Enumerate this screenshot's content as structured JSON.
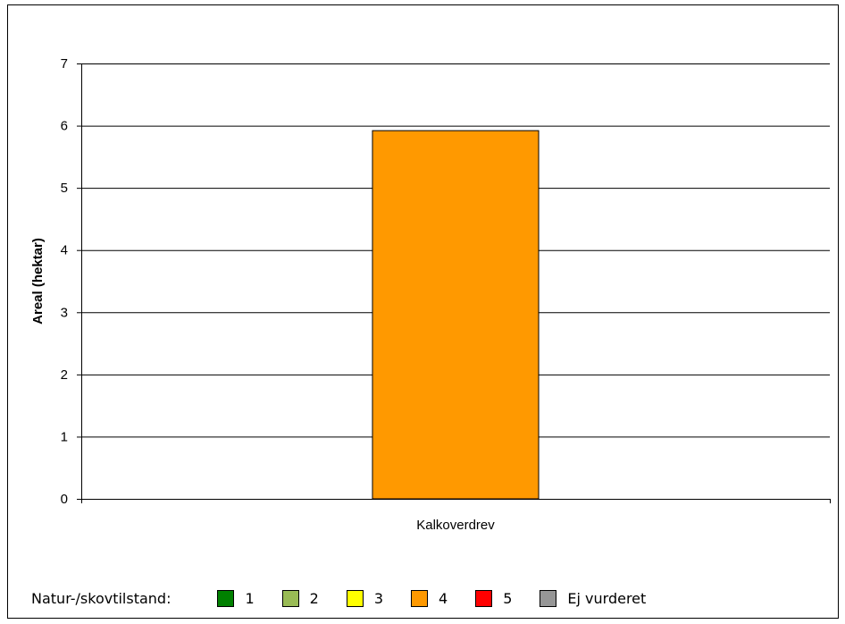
{
  "chart_data": {
    "type": "bar",
    "categories": [
      "Kalkoverdrev"
    ],
    "values": [
      5.92
    ],
    "bar_color": "#FF9900",
    "xlabel": "",
    "ylabel": "Areal (hektar)",
    "ylim": [
      0,
      7
    ],
    "yticks": [
      0,
      1,
      2,
      3,
      4,
      5,
      6,
      7
    ],
    "grid": true
  },
  "legend": {
    "title": "Natur-/skovtilstand:",
    "placement": "bottom",
    "items": [
      {
        "label": "1",
        "color": "#008000"
      },
      {
        "label": "2",
        "color": "#99BB55"
      },
      {
        "label": "3",
        "color": "#FFFF00"
      },
      {
        "label": "4",
        "color": "#FF9900"
      },
      {
        "label": "5",
        "color": "#FF0000"
      },
      {
        "label": "Ej vurderet",
        "color": "#969696"
      }
    ]
  }
}
